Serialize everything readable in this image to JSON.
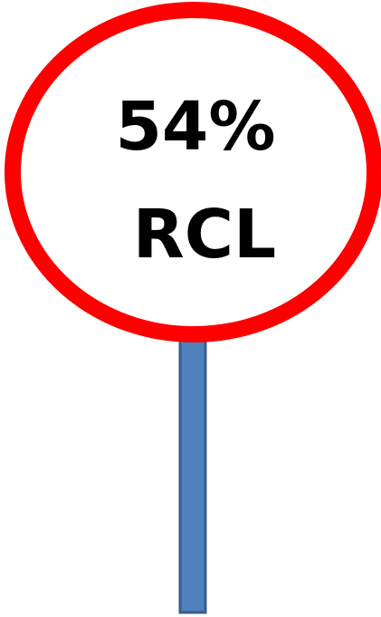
{
  "sign": {
    "line1": "54%",
    "line2": "RCL"
  }
}
